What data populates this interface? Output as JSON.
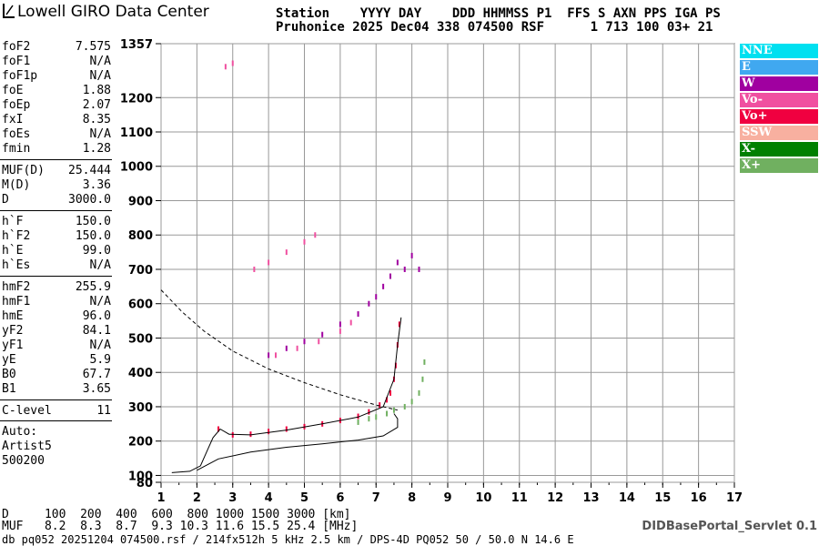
{
  "header": {
    "logo_text": "Lowell GIRO Data Center",
    "line1": "Station    YYYY DAY    DDD HHMMSS P1  FFS S AXN PPS IGA PS",
    "line2": "Pruhonice 2025 Dec04 338 074500 RSF      1 713 100 03+ 21"
  },
  "params": [
    {
      "k": "foF2",
      "v": "7.575"
    },
    {
      "k": "foF1",
      "v": "N/A"
    },
    {
      "k": "foF1p",
      "v": "N/A"
    },
    {
      "k": "foE",
      "v": "1.88"
    },
    {
      "k": "foEp",
      "v": "2.07"
    },
    {
      "k": "fxI",
      "v": "8.35"
    },
    {
      "k": "foEs",
      "v": "N/A"
    },
    {
      "k": "fmin",
      "v": "1.28"
    },
    {
      "k": "MUF(D)",
      "v": "25.444"
    },
    {
      "k": "M(D)",
      "v": "3.36"
    },
    {
      "k": "D",
      "v": "3000.0"
    },
    {
      "k": "h`F",
      "v": "150.0"
    },
    {
      "k": "h`F2",
      "v": "150.0"
    },
    {
      "k": "h`E",
      "v": "99.0"
    },
    {
      "k": "h`Es",
      "v": "N/A"
    },
    {
      "k": "hmF2",
      "v": "255.9"
    },
    {
      "k": "hmF1",
      "v": "N/A"
    },
    {
      "k": "hmE",
      "v": "96.0"
    },
    {
      "k": "yF2",
      "v": "84.1"
    },
    {
      "k": "yF1",
      "v": "N/A"
    },
    {
      "k": "yE",
      "v": "5.9"
    },
    {
      "k": "B0",
      "v": "67.7"
    },
    {
      "k": "B1",
      "v": "3.65"
    },
    {
      "k": "C-level",
      "v": "11"
    }
  ],
  "auto": {
    "l1": "Auto:",
    "l2": "Artist5",
    "l3": "500200"
  },
  "legend": [
    {
      "label": "NNE",
      "color": "#00e0f0"
    },
    {
      "label": "E",
      "color": "#40a8f0"
    },
    {
      "label": "W",
      "color": "#a000a0"
    },
    {
      "label": "Vo-",
      "color": "#f050a0"
    },
    {
      "label": "Vo+",
      "color": "#f00040"
    },
    {
      "label": "SSW",
      "color": "#f8b0a0"
    },
    {
      "label": "X-",
      "color": "#008000"
    },
    {
      "label": "X+",
      "color": "#70b060"
    }
  ],
  "bottom": {
    "d_row": "D     100  200  400  600  800 1000 1500 3000 [km]",
    "muf_row": "MUF   8.2  8.3  8.7  9.3 10.3 11.6 15.5 25.4 [MHz]",
    "footer": "db pq052 20251204 074500.rsf / 214fx512h 5 kHz 2.5 km / DPS-4D PQ052 50 / 50.0 N 14.6 E",
    "servlet": "DIDBasePortal_Servlet 0.1"
  },
  "chart_data": {
    "type": "scatter",
    "xlim": [
      1,
      17
    ],
    "ylim": [
      80,
      1357
    ],
    "x_ticks": [
      1,
      2,
      3,
      4,
      5,
      6,
      7,
      8,
      9,
      10,
      11,
      12,
      13,
      14,
      15,
      16,
      17
    ],
    "y_ticks": [
      80,
      100,
      200,
      300,
      400,
      500,
      600,
      700,
      800,
      900,
      1000,
      1100,
      1200,
      1357
    ],
    "grid": true,
    "series": [
      {
        "name": "Vo+",
        "color": "#f00040",
        "points": [
          [
            2.6,
            235
          ],
          [
            3.0,
            218
          ],
          [
            3.5,
            220
          ],
          [
            4.0,
            228
          ],
          [
            4.5,
            235
          ],
          [
            5.0,
            242
          ],
          [
            5.5,
            250
          ],
          [
            6.0,
            260
          ],
          [
            6.5,
            272
          ],
          [
            6.8,
            285
          ],
          [
            7.1,
            305
          ],
          [
            7.3,
            320
          ],
          [
            7.4,
            340
          ],
          [
            7.5,
            380
          ],
          [
            7.55,
            420
          ],
          [
            7.6,
            480
          ],
          [
            7.65,
            540
          ]
        ]
      },
      {
        "name": "X+",
        "color": "#70b060",
        "points": [
          [
            6.5,
            255
          ],
          [
            6.8,
            265
          ],
          [
            7.0,
            270
          ],
          [
            7.3,
            280
          ],
          [
            7.5,
            290
          ],
          [
            7.8,
            300
          ],
          [
            8.0,
            315
          ],
          [
            8.2,
            340
          ],
          [
            8.3,
            380
          ],
          [
            8.35,
            430
          ]
        ]
      },
      {
        "name": "W",
        "color": "#a000a0",
        "points": [
          [
            4.0,
            450
          ],
          [
            4.5,
            470
          ],
          [
            5.0,
            490
          ],
          [
            5.5,
            510
          ],
          [
            6.0,
            540
          ],
          [
            6.5,
            570
          ],
          [
            6.8,
            600
          ],
          [
            7.0,
            620
          ],
          [
            7.2,
            650
          ],
          [
            7.4,
            680
          ],
          [
            7.6,
            720
          ],
          [
            7.8,
            700
          ],
          [
            8.0,
            740
          ],
          [
            8.2,
            700
          ]
        ]
      },
      {
        "name": "Vo-",
        "color": "#f050a0",
        "points": [
          [
            4.2,
            450
          ],
          [
            4.8,
            470
          ],
          [
            5.4,
            490
          ],
          [
            6.0,
            520
          ],
          [
            6.3,
            545
          ],
          [
            3.6,
            700
          ],
          [
            4.0,
            720
          ],
          [
            4.5,
            750
          ],
          [
            5.0,
            780
          ],
          [
            5.3,
            800
          ],
          [
            2.8,
            1290
          ],
          [
            3.0,
            1300
          ]
        ]
      }
    ]
  }
}
